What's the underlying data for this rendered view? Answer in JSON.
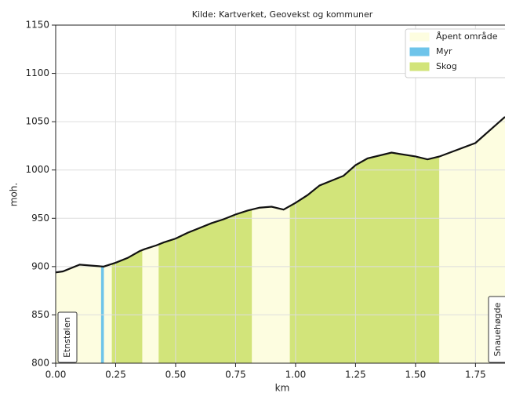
{
  "chart_data": {
    "type": "area",
    "title": "Kilde: Kartverket, Geovekst og kommuner",
    "xlabel": "km",
    "ylabel": "moh.",
    "x": [
      0,
      0.03,
      0.1,
      0.15,
      0.2,
      0.25,
      0.3,
      0.35,
      0.37,
      0.42,
      0.45,
      0.5,
      0.55,
      0.6,
      0.65,
      0.7,
      0.75,
      0.8,
      0.85,
      0.9,
      0.95,
      1.0,
      1.05,
      1.1,
      1.2,
      1.25,
      1.3,
      1.4,
      1.5,
      1.55,
      1.6,
      1.75,
      1.873
    ],
    "values": [
      894,
      895,
      902,
      901,
      900,
      904,
      909,
      916,
      918,
      922,
      925,
      929,
      935,
      940,
      945,
      949,
      954,
      958,
      961,
      962,
      959,
      966,
      974,
      984,
      994,
      1005,
      1012,
      1018,
      1014,
      1011,
      1014,
      1028,
      1055
    ],
    "line_color": "#111111",
    "series": [
      {
        "name": "Åpent område",
        "color": "#fdfde0",
        "ranges": [
          [
            0,
            0.19
          ],
          [
            0.2,
            0.235
          ],
          [
            0.36,
            0.43
          ],
          [
            0.817,
            0.977
          ],
          [
            1.598,
            1.873
          ]
        ]
      },
      {
        "name": "Myr",
        "color": "#6ec4ea",
        "ranges": [
          [
            0.19,
            0.2
          ]
        ]
      },
      {
        "name": "Skog",
        "color": "#d2e47a",
        "ranges": [
          [
            0.235,
            0.36
          ],
          [
            0.43,
            0.817
          ],
          [
            0.977,
            1.598
          ]
        ]
      }
    ],
    "annotations": [
      "Etnstølen",
      "Snauehøgde"
    ],
    "xlim": [
      0,
      1.873
    ],
    "ylim": [
      800,
      1150
    ],
    "xticks": [
      {
        "value": 0,
        "label": "0.00"
      },
      {
        "value": 0.25,
        "label": "0.25"
      },
      {
        "value": 0.5,
        "label": "0.50"
      },
      {
        "value": 0.75,
        "label": "0.75"
      },
      {
        "value": 1,
        "label": "1.00"
      },
      {
        "value": 1.25,
        "label": "1.25"
      },
      {
        "value": 1.5,
        "label": "1.50"
      },
      {
        "value": 1.75,
        "label": "1.75"
      }
    ],
    "yticks": [
      800,
      850,
      900,
      950,
      1000,
      1050,
      1100,
      1150
    ],
    "grid": true,
    "legend": "upper right"
  }
}
